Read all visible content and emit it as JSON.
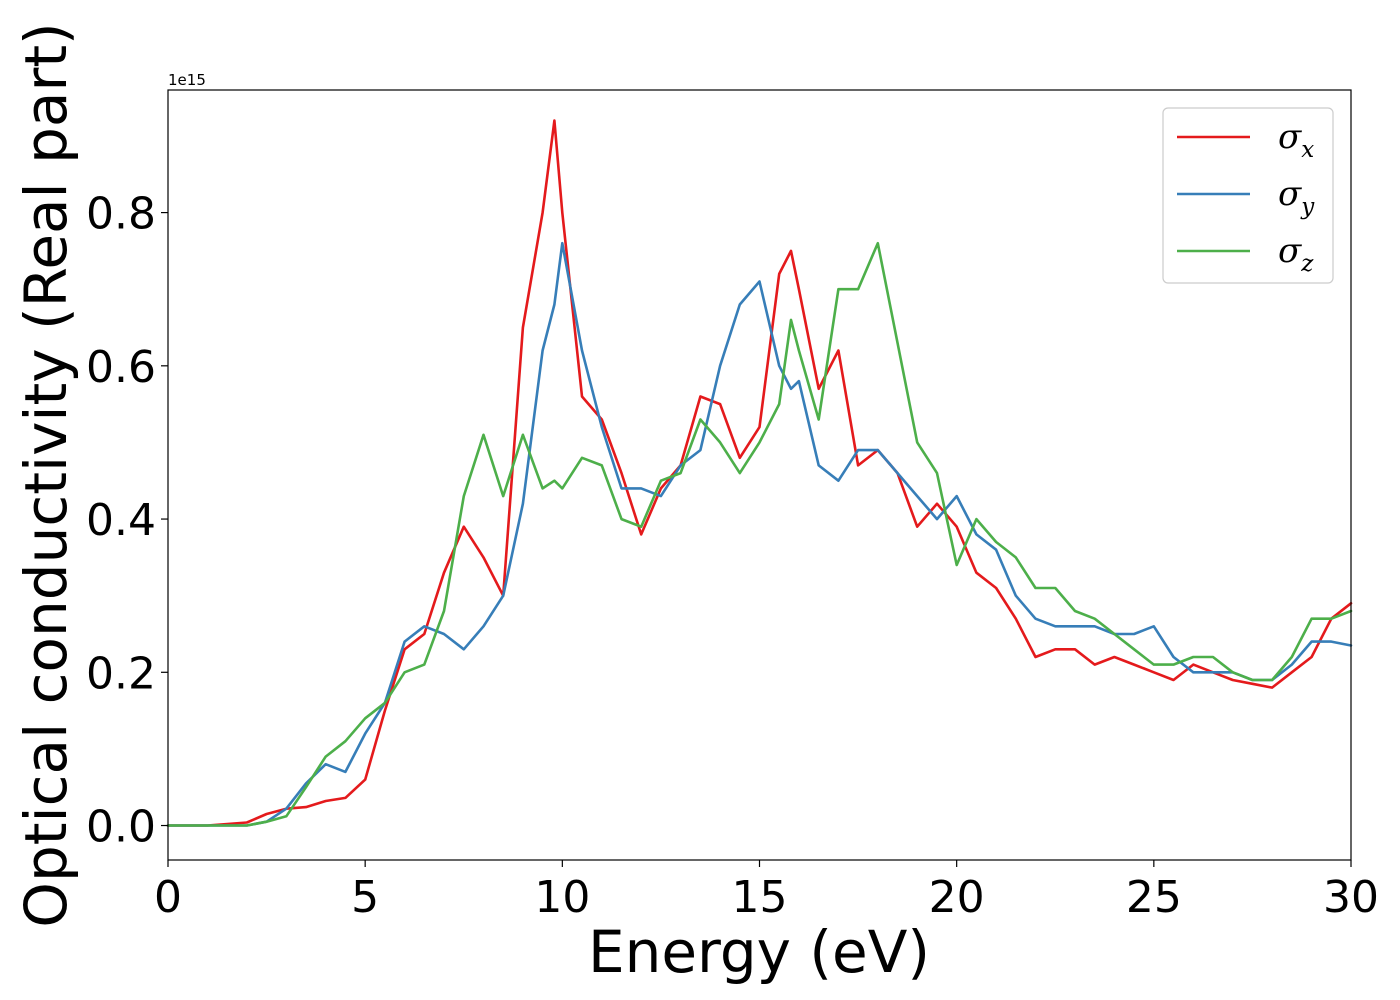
{
  "chart_data": {
    "type": "line",
    "title": "",
    "xlabel": "Energy (eV)",
    "ylabel": "Optical conductivity (Real part)",
    "offset_text": "1e15",
    "xlim": [
      0,
      30
    ],
    "ylim": [
      -0.045,
      0.96
    ],
    "xticks": [
      0,
      5,
      10,
      15,
      20,
      25,
      30
    ],
    "xtick_labels": [
      "0",
      "5",
      "10",
      "15",
      "20",
      "25",
      "30"
    ],
    "yticks": [
      0.0,
      0.2,
      0.4,
      0.6,
      0.8
    ],
    "ytick_labels": [
      "0.0",
      "0.2",
      "0.4",
      "0.6",
      "0.8"
    ],
    "grid": false,
    "legend_position": "top-right",
    "x": [
      0,
      1,
      2,
      2.5,
      3,
      3.5,
      4,
      4.5,
      5,
      5.5,
      6,
      6.5,
      7,
      7.5,
      8,
      8.5,
      9,
      9.5,
      9.8,
      10,
      10.5,
      11,
      11.5,
      12,
      12.5,
      13,
      13.5,
      14,
      14.5,
      15,
      15.5,
      15.8,
      16,
      16.5,
      17,
      17.5,
      18,
      18.5,
      19,
      19.5,
      20,
      20.5,
      21,
      21.5,
      22,
      22.5,
      23,
      23.5,
      24,
      24.5,
      25,
      25.5,
      26,
      26.5,
      27,
      27.5,
      28,
      28.5,
      29,
      29.5,
      30
    ],
    "series": [
      {
        "name": "σ",
        "subscript": "x",
        "color": "#e41a1c",
        "values": [
          0.0,
          0.0,
          0.004,
          0.015,
          0.022,
          0.024,
          0.032,
          0.036,
          0.06,
          0.15,
          0.23,
          0.25,
          0.33,
          0.39,
          0.35,
          0.3,
          0.65,
          0.8,
          0.92,
          0.8,
          0.56,
          0.53,
          0.46,
          0.38,
          0.44,
          0.47,
          0.56,
          0.55,
          0.48,
          0.52,
          0.72,
          0.75,
          0.7,
          0.57,
          0.62,
          0.47,
          0.49,
          0.46,
          0.39,
          0.42,
          0.39,
          0.33,
          0.31,
          0.27,
          0.22,
          0.23,
          0.23,
          0.21,
          0.22,
          0.21,
          0.2,
          0.19,
          0.21,
          0.2,
          0.19,
          0.185,
          0.18,
          0.2,
          0.22,
          0.27,
          0.29
        ]
      },
      {
        "name": "σ",
        "subscript": "y",
        "color": "#377eb8",
        "values": [
          0.0,
          0.0,
          0.0,
          0.005,
          0.022,
          0.055,
          0.08,
          0.07,
          0.12,
          0.16,
          0.24,
          0.26,
          0.25,
          0.23,
          0.26,
          0.3,
          0.42,
          0.62,
          0.68,
          0.76,
          0.62,
          0.52,
          0.44,
          0.44,
          0.43,
          0.47,
          0.49,
          0.6,
          0.68,
          0.71,
          0.6,
          0.57,
          0.58,
          0.47,
          0.45,
          0.49,
          0.49,
          0.46,
          0.43,
          0.4,
          0.43,
          0.38,
          0.36,
          0.3,
          0.27,
          0.26,
          0.26,
          0.26,
          0.25,
          0.25,
          0.26,
          0.22,
          0.2,
          0.2,
          0.2,
          0.19,
          0.19,
          0.21,
          0.24,
          0.24,
          0.235
        ]
      },
      {
        "name": "σ",
        "subscript": "z",
        "color": "#4daf4a",
        "values": [
          0.0,
          0.0,
          0.0,
          0.005,
          0.012,
          0.05,
          0.09,
          0.11,
          0.14,
          0.16,
          0.2,
          0.21,
          0.28,
          0.43,
          0.51,
          0.43,
          0.51,
          0.44,
          0.45,
          0.44,
          0.48,
          0.47,
          0.4,
          0.39,
          0.45,
          0.46,
          0.53,
          0.5,
          0.46,
          0.5,
          0.55,
          0.66,
          0.62,
          0.53,
          0.7,
          0.7,
          0.76,
          0.63,
          0.5,
          0.46,
          0.34,
          0.4,
          0.37,
          0.35,
          0.31,
          0.31,
          0.28,
          0.27,
          0.25,
          0.23,
          0.21,
          0.21,
          0.22,
          0.22,
          0.2,
          0.19,
          0.19,
          0.22,
          0.27,
          0.27,
          0.28
        ]
      }
    ]
  }
}
